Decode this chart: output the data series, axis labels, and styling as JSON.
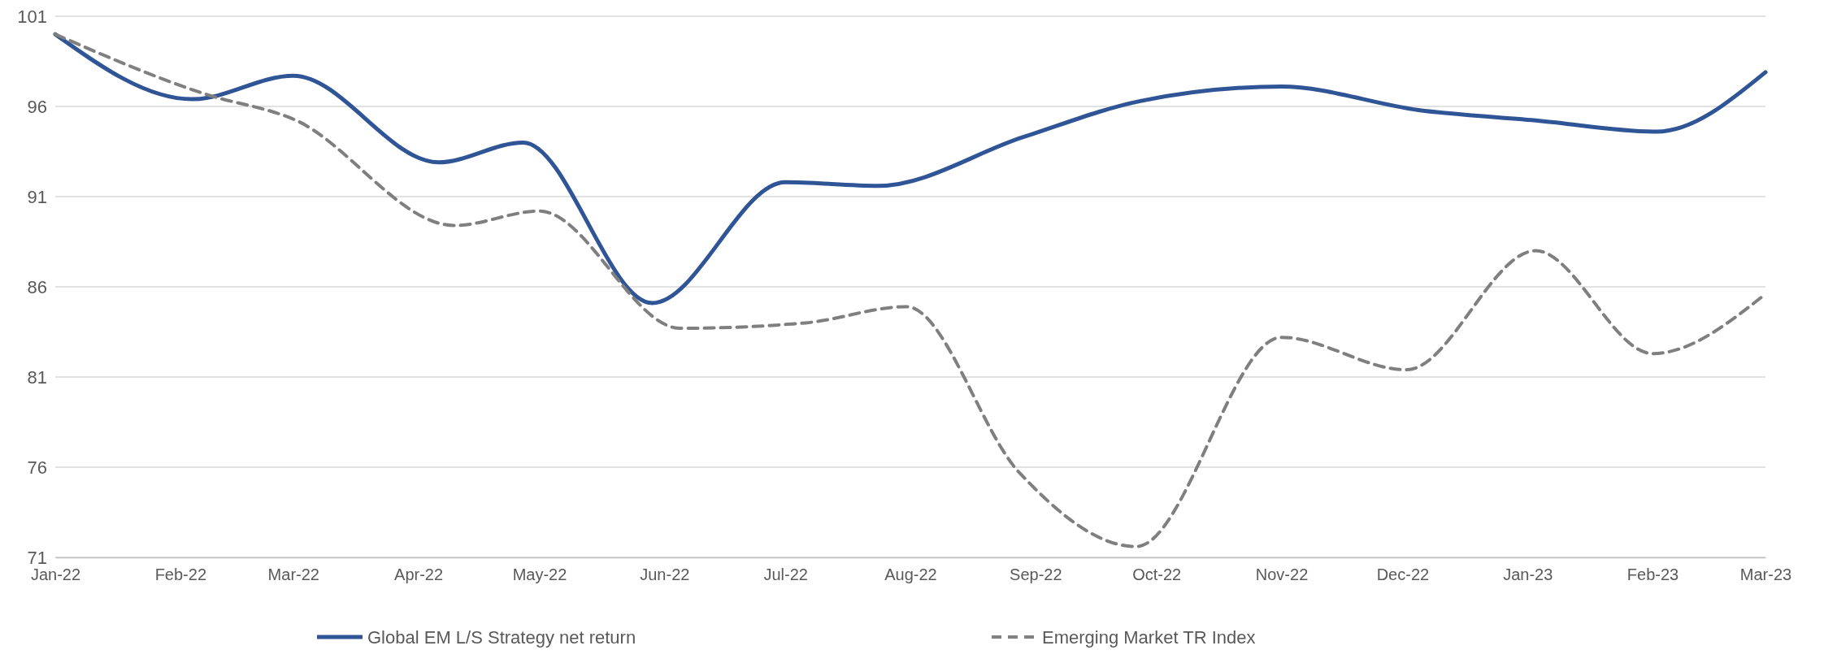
{
  "chart_data": {
    "type": "line",
    "xlim": [
      "2022-01-01",
      "2023-03-01"
    ],
    "xticks": [
      {
        "value": "2022-01-01",
        "label": "Jan-22"
      },
      {
        "value": "2022-02-01",
        "label": "Feb-22"
      },
      {
        "value": "2022-03-01",
        "label": "Mar-22"
      },
      {
        "value": "2022-04-01",
        "label": "Apr-22"
      },
      {
        "value": "2022-05-01",
        "label": "May-22"
      },
      {
        "value": "2022-06-01",
        "label": "Jun-22"
      },
      {
        "value": "2022-07-01",
        "label": "Jul-22"
      },
      {
        "value": "2022-08-01",
        "label": "Aug-22"
      },
      {
        "value": "2022-09-01",
        "label": "Sep-22"
      },
      {
        "value": "2022-10-01",
        "label": "Oct-22"
      },
      {
        "value": "2022-11-01",
        "label": "Nov-22"
      },
      {
        "value": "2022-12-01",
        "label": "Dec-22"
      },
      {
        "value": "2023-01-01",
        "label": "Jan-23"
      },
      {
        "value": "2023-02-01",
        "label": "Feb-23"
      },
      {
        "value": "2023-03-01",
        "label": "Mar-23"
      }
    ],
    "ylim": [
      71,
      101
    ],
    "yticks": [
      71,
      76,
      81,
      86,
      91,
      96,
      101
    ],
    "grid": "y",
    "legend": "bottom",
    "series": [
      {
        "name": "Global EM L/S Strategy net return",
        "color": "#2f5597",
        "line_style": "solid",
        "x": [
          "2022-01-01",
          "2022-02-04",
          "2022-03-01",
          "2022-04-06",
          "2022-04-27",
          "2022-05-29",
          "2022-07-01",
          "2022-07-24",
          "2022-08-29",
          "2022-09-27",
          "2022-11-01",
          "2022-12-05",
          "2023-01-04",
          "2023-02-02",
          "2023-03-01"
        ],
        "values": [
          100,
          96.4,
          97.7,
          92.9,
          94.0,
          85.1,
          91.8,
          91.6,
          94.3,
          96.3,
          97.1,
          95.8,
          95.2,
          94.6,
          97.9
        ]
      },
      {
        "name": "Emerging Market TR Index",
        "color": "#7f7f7f",
        "line_style": "dashed",
        "x": [
          "2022-01-01",
          "2022-02-07",
          "2022-03-01",
          "2022-04-10",
          "2022-05-01",
          "2022-06-05",
          "2022-07-06",
          "2022-07-31",
          "2022-08-28",
          "2022-09-26",
          "2022-11-01",
          "2022-12-02",
          "2023-01-03",
          "2023-02-01",
          "2023-03-01"
        ],
        "values": [
          100,
          96.7,
          95.3,
          89.4,
          90.2,
          83.7,
          84.0,
          84.9,
          75.7,
          71.6,
          83.2,
          81.4,
          88.0,
          82.3,
          85.6
        ]
      }
    ]
  }
}
